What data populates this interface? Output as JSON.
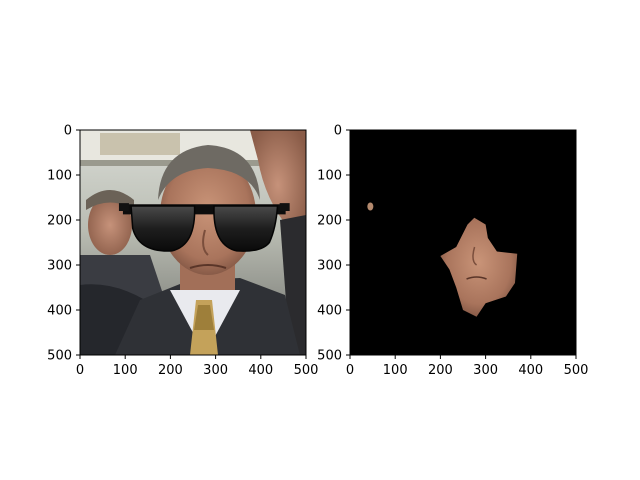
{
  "chart_data": [
    {
      "type": "image",
      "xlim": [
        0,
        500
      ],
      "ylim": [
        500,
        0
      ],
      "y_inverted": true,
      "xticks": [
        0,
        100,
        200,
        300,
        400,
        500
      ],
      "yticks": [
        0,
        100,
        200,
        300,
        400,
        500
      ],
      "xtick_labels": [
        "0",
        "100",
        "200",
        "300",
        "400",
        "500"
      ],
      "ytick_labels": [
        "0",
        "100",
        "200",
        "300",
        "400",
        "500"
      ],
      "grid": false,
      "sunglasses_overlay": {
        "x_range": [
          95,
          455
        ],
        "y_range": [
          150,
          275
        ]
      }
    },
    {
      "type": "image",
      "xlim": [
        0,
        500
      ],
      "ylim": [
        500,
        0
      ],
      "y_inverted": true,
      "background": "#000000",
      "xticks": [
        0,
        100,
        200,
        300,
        400,
        500
      ],
      "xtick_labels": [
        "0",
        "100",
        "200",
        "300",
        "400",
        "500"
      ],
      "yticks": [
        0,
        100,
        200,
        300,
        400,
        500
      ],
      "ytick_labels": [
        "0",
        "100",
        "200",
        "300",
        "400",
        "500"
      ],
      "grid": false,
      "face_region_outline": [
        [
          200,
          280
        ],
        [
          235,
          260
        ],
        [
          260,
          210
        ],
        [
          275,
          195
        ],
        [
          300,
          210
        ],
        [
          305,
          240
        ],
        [
          325,
          270
        ],
        [
          370,
          275
        ],
        [
          365,
          340
        ],
        [
          345,
          370
        ],
        [
          300,
          385
        ],
        [
          280,
          415
        ],
        [
          250,
          400
        ],
        [
          235,
          350
        ],
        [
          220,
          310
        ]
      ],
      "small_patch": {
        "x": 45,
        "y": 170
      }
    }
  ]
}
